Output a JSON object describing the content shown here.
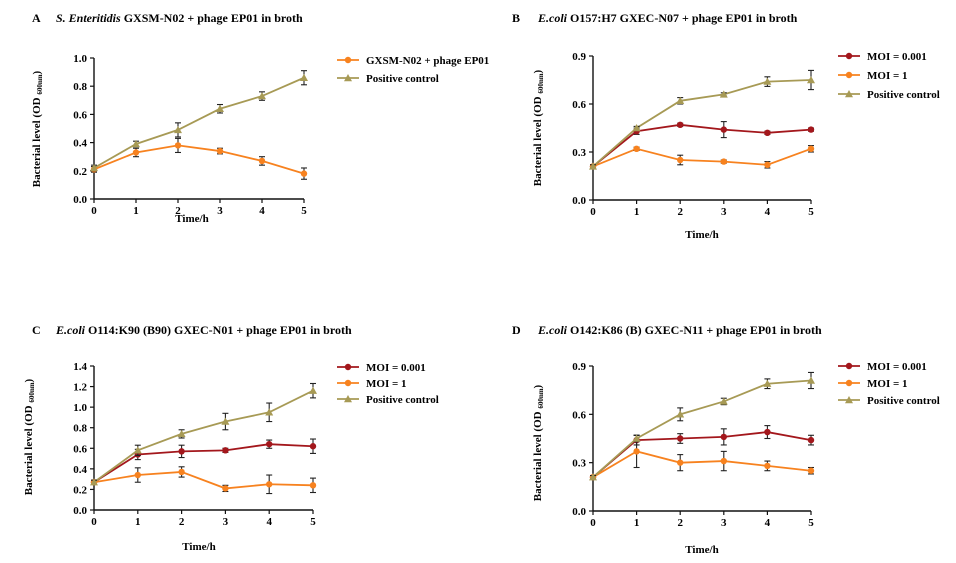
{
  "colors": {
    "moi_low": "#a3171c",
    "moi_high": "#f7821f",
    "positive": "#a79a55",
    "axis": "#111111"
  },
  "chart_data": [
    {
      "type": "line",
      "panel": "A",
      "title_italic": "S. Enteritidis",
      "title_rest": " GXSM-N02 + phage EP01 in broth",
      "xlabel": "Time/h",
      "ylabel_main": "Bacterial level (OD ",
      "ylabel_sub": "600nm",
      "ylabel_close": ")",
      "x": [
        0,
        1,
        2,
        3,
        4,
        5
      ],
      "xlim": [
        0,
        5
      ],
      "ylim": [
        0,
        1.0
      ],
      "yticks": [
        "0.0",
        "0.2",
        "0.4",
        "0.6",
        "0.8",
        "1.0"
      ],
      "ytick_values": [
        0,
        0.2,
        0.4,
        0.6,
        0.8,
        1.0
      ],
      "legend_position": "top-right",
      "series": [
        {
          "name": "GXSM-N02 + phage EP01",
          "color_key": "moi_high",
          "marker": "circle",
          "values": [
            0.21,
            0.33,
            0.38,
            0.34,
            0.27,
            0.18
          ],
          "err": [
            0.02,
            0.03,
            0.05,
            0.02,
            0.03,
            0.04
          ]
        },
        {
          "name": "Positive control",
          "color_key": "positive",
          "marker": "triangle",
          "values": [
            0.22,
            0.39,
            0.49,
            0.64,
            0.73,
            0.86
          ],
          "err": [
            0.02,
            0.02,
            0.05,
            0.03,
            0.03,
            0.05
          ]
        }
      ]
    },
    {
      "type": "line",
      "panel": "B",
      "title_italic": "E.coli",
      "title_rest": " O157:H7 GXEC-N07 + phage EP01 in broth",
      "xlabel": "Time/h",
      "ylabel_main": "Bacterial level (OD ",
      "ylabel_sub": "600nm",
      "ylabel_close": ")",
      "x": [
        0,
        1,
        2,
        3,
        4,
        5
      ],
      "xlim": [
        0,
        5
      ],
      "ylim": [
        0,
        0.9
      ],
      "yticks": [
        "0.0",
        "0.3",
        "0.6",
        "0.9"
      ],
      "ytick_values": [
        0,
        0.3,
        0.6,
        0.9
      ],
      "legend_position": "top-right",
      "series": [
        {
          "name": "MOI = 0.001",
          "color_key": "moi_low",
          "marker": "circle",
          "values": [
            0.21,
            0.43,
            0.47,
            0.44,
            0.42,
            0.44
          ],
          "err": [
            0.01,
            0.02,
            0.01,
            0.05,
            0.01,
            0.01
          ]
        },
        {
          "name": "MOI = 1",
          "color_key": "moi_high",
          "marker": "circle",
          "values": [
            0.21,
            0.32,
            0.25,
            0.24,
            0.22,
            0.32
          ],
          "err": [
            0.01,
            0.01,
            0.03,
            0.01,
            0.02,
            0.02
          ]
        },
        {
          "name": "Positive control",
          "color_key": "positive",
          "marker": "triangle",
          "values": [
            0.21,
            0.45,
            0.62,
            0.66,
            0.74,
            0.75
          ],
          "err": [
            0.01,
            0.01,
            0.02,
            0.01,
            0.03,
            0.06
          ]
        }
      ]
    },
    {
      "type": "line",
      "panel": "C",
      "title_italic": "E.coli",
      "title_rest": " O114:K90 (B90) GXEC-N01 + phage EP01 in broth",
      "xlabel": "Time/h",
      "ylabel_main": "Bacterial level (OD ",
      "ylabel_sub": "600nm",
      "ylabel_close": ")",
      "x": [
        0,
        1,
        2,
        3,
        4,
        5
      ],
      "xlim": [
        0,
        5
      ],
      "ylim": [
        0,
        1.4
      ],
      "yticks": [
        "0.0",
        "0.2",
        "0.4",
        "0.6",
        "0.8",
        "1.0",
        "1.2",
        "1.4"
      ],
      "ytick_values": [
        0,
        0.2,
        0.4,
        0.6,
        0.8,
        1.0,
        1.2,
        1.4
      ],
      "legend_position": "top-right",
      "series": [
        {
          "name": "MOI = 0.001",
          "color_key": "moi_low",
          "marker": "circle",
          "values": [
            0.27,
            0.54,
            0.57,
            0.58,
            0.64,
            0.62
          ],
          "err": [
            0.02,
            0.05,
            0.06,
            0.02,
            0.04,
            0.07
          ]
        },
        {
          "name": "MOI = 1",
          "color_key": "moi_high",
          "marker": "circle",
          "values": [
            0.27,
            0.34,
            0.37,
            0.21,
            0.25,
            0.24
          ],
          "err": [
            0.02,
            0.07,
            0.05,
            0.03,
            0.09,
            0.07
          ]
        },
        {
          "name": "Positive control",
          "color_key": "positive",
          "marker": "triangle",
          "values": [
            0.27,
            0.58,
            0.74,
            0.86,
            0.95,
            1.16
          ],
          "err": [
            0.02,
            0.05,
            0.04,
            0.08,
            0.09,
            0.07
          ]
        }
      ]
    },
    {
      "type": "line",
      "panel": "D",
      "title_italic": "E.coli",
      "title_rest": " O142:K86 (B) GXEC-N11 + phage EP01 in broth",
      "xlabel": "Time/h",
      "ylabel_main": "Bacterial level (OD ",
      "ylabel_sub": "600nm",
      "ylabel_close": ")",
      "x": [
        0,
        1,
        2,
        3,
        4,
        5
      ],
      "xlim": [
        0,
        5
      ],
      "ylim": [
        0,
        0.9
      ],
      "yticks": [
        "0.0",
        "0.3",
        "0.6",
        "0.9"
      ],
      "ytick_values": [
        0,
        0.3,
        0.6,
        0.9
      ],
      "legend_position": "top-right",
      "series": [
        {
          "name": "MOI = 0.001",
          "color_key": "moi_low",
          "marker": "circle",
          "values": [
            0.21,
            0.44,
            0.45,
            0.46,
            0.49,
            0.44
          ],
          "err": [
            0.01,
            0.03,
            0.03,
            0.05,
            0.04,
            0.03
          ]
        },
        {
          "name": "MOI = 1",
          "color_key": "moi_high",
          "marker": "circle",
          "values": [
            0.21,
            0.37,
            0.3,
            0.31,
            0.28,
            0.25
          ],
          "err": [
            0.01,
            0.1,
            0.05,
            0.06,
            0.03,
            0.02
          ]
        },
        {
          "name": "Positive control",
          "color_key": "positive",
          "marker": "triangle",
          "values": [
            0.21,
            0.45,
            0.6,
            0.68,
            0.79,
            0.81
          ],
          "err": [
            0.01,
            0.02,
            0.04,
            0.02,
            0.03,
            0.05
          ]
        }
      ]
    }
  ]
}
